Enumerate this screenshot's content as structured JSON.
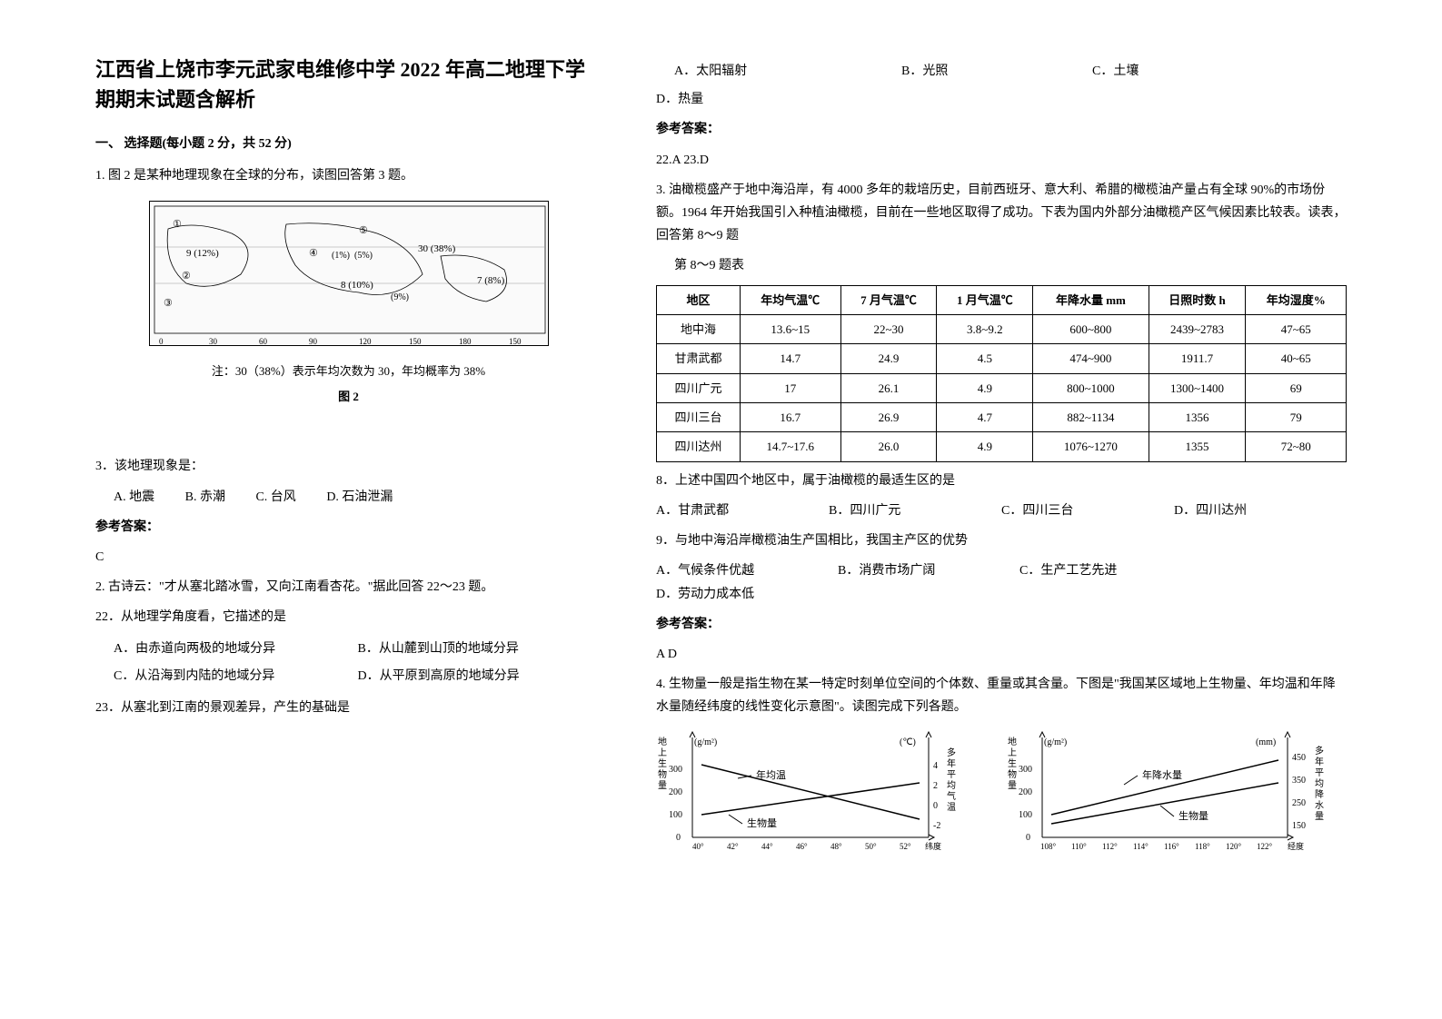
{
  "title": "江西省上饶市李元武家电维修中学 2022 年高二地理下学期期末试题含解析",
  "section1": "一、 选择题(每小题 2 分，共 52 分)",
  "q1": {
    "stem": "1. 图 2 是某种地理现象在全球的分布，读图回答第 3 题。",
    "map_labels": [
      "①",
      "②",
      "③",
      "④",
      "⑤",
      "9 (12%)",
      "(1%)",
      "(5%)",
      "30 (38%)",
      "8 (10%)",
      "(9%)",
      "7 (8%)"
    ],
    "map_ticks": [
      "0",
      "30",
      "60",
      "90",
      "120",
      "150",
      "180",
      "150"
    ],
    "map_note": "注：30（38%）表示年均次数为 30，年均概率为 38%",
    "fig_caption": "图 2",
    "sub3": "3．该地理现象是：",
    "sub3_opts": {
      "A": "A. 地震",
      "B": "B. 赤潮",
      "C": "C. 台风",
      "D": "D. 石油泄漏"
    },
    "ans_label": "参考答案：",
    "ans": "C"
  },
  "q2": {
    "stem": "2. 古诗云：\"才从塞北踏冰雪，又向江南看杏花。\"据此回答 22～23 题。",
    "sub22": "22．从地理学角度看，它描述的是",
    "sub22_opts": {
      "A": "A．由赤道向两极的地域分异",
      "B": "B．从山麓到山顶的地域分异",
      "C": "C．从沿海到内陆的地域分异",
      "D": "D．从平原到高原的地域分异"
    },
    "sub23": "23．从塞北到江南的景观差异，产生的基础是",
    "sub23_opts": {
      "A": "A．太阳辐射",
      "B": "B．光照",
      "C": "C．土壤",
      "D": "D．热量"
    },
    "ans_label": "参考答案：",
    "ans": "22.A   23.D"
  },
  "q3": {
    "stem": "3. 油橄榄盛产于地中海沿岸，有 4000 多年的栽培历史，目前西班牙、意大利、希腊的橄榄油产量占有全球 90%的市场份额。1964 年开始我国引入种植油橄榄，目前在一些地区取得了成功。下表为国内外部分油橄榄产区气候因素比较表。读表，回答第 8～9 题",
    "table_caption": "第 8～9 题表",
    "columns": [
      "地区",
      "年均气温℃",
      "7 月气温℃",
      "1 月气温℃",
      "年降水量 mm",
      "日照时数 h",
      "年均湿度%"
    ],
    "rows": [
      [
        "地中海",
        "13.6~15",
        "22~30",
        "3.8~9.2",
        "600~800",
        "2439~2783",
        "47~65"
      ],
      [
        "甘肃武都",
        "14.7",
        "24.9",
        "4.5",
        "474~900",
        "1911.7",
        "40~65"
      ],
      [
        "四川广元",
        "17",
        "26.1",
        "4.9",
        "800~1000",
        "1300~1400",
        "69"
      ],
      [
        "四川三台",
        "16.7",
        "26.9",
        "4.7",
        "882~1134",
        "1356",
        "79"
      ],
      [
        "四川达州",
        "14.7~17.6",
        "26.0",
        "4.9",
        "1076~1270",
        "1355",
        "72~80"
      ]
    ],
    "sub8": "8．上述中国四个地区中，属于油橄榄的最适生区的是",
    "sub8_opts": {
      "A": "A．甘肃武都",
      "B": "B．四川广元",
      "C": "C．四川三台",
      "D": "D．四川达州"
    },
    "sub9": "9．与地中海沿岸橄榄油生产国相比，我国主产区的优势",
    "sub9_opts": {
      "A": "A．气候条件优越",
      "B": "B．消费市场广阔",
      "C": "C．生产工艺先进",
      "D": "D．劳动力成本低"
    },
    "ans_label": "参考答案：",
    "ans": "A D"
  },
  "q4": {
    "stem": "4. 生物量一般是指生物在某一特定时刻单位空间的个体数、重量或其含量。下图是\"我国某区域地上生物量、年均温和年降水量随经纬度的线性变化示意图\"。读图完成下列各题。",
    "chart_left": {
      "y_left_label": "地上生物量",
      "y_left_unit": "(g/m²)",
      "y_right_label": "多年平均气温",
      "y_right_unit": "(℃)",
      "y_left_ticks": [
        "0",
        "100",
        "200",
        "300"
      ],
      "y_right_ticks": [
        "-2",
        "0",
        "2",
        "4"
      ],
      "x_ticks": [
        "40°",
        "42°",
        "44°",
        "46°",
        "48°",
        "50°",
        "52°"
      ],
      "x_unit": "纬度",
      "series": [
        "年均温",
        "生物量"
      ]
    },
    "chart_right": {
      "y_left_label": "地上生物量",
      "y_left_unit": "(g/m²)",
      "y_right_label": "多年平均降水量",
      "y_right_unit": "(mm)",
      "y_left_ticks": [
        "0",
        "100",
        "200",
        "300"
      ],
      "y_right_ticks": [
        "150",
        "250",
        "350",
        "450"
      ],
      "x_ticks": [
        "108°",
        "110°",
        "112°",
        "114°",
        "116°",
        "118°",
        "120°",
        "122°"
      ],
      "x_unit": "经度",
      "series": [
        "年降水量",
        "生物量"
      ]
    }
  }
}
